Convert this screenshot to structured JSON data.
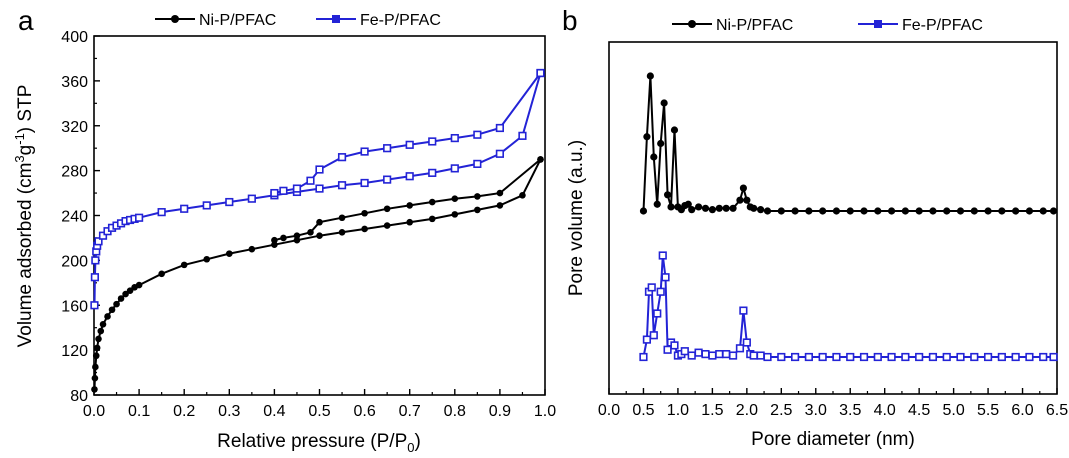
{
  "chart_data": [
    {
      "panel": "a",
      "type": "line",
      "xlabel": "Relative pressure (P/P",
      "xlabel_sub": "0",
      "xlabel_end": ")",
      "ylabel": "Volume adsorbed (cm",
      "ylabel_sup1": "3",
      "ylabel_mid": "g",
      "ylabel_sup2": "-1",
      "ylabel_end": ") STP",
      "xlim": [
        0.0,
        1.0
      ],
      "ylim": [
        80,
        400
      ],
      "xticks": [
        "0.0",
        "0.1",
        "0.2",
        "0.3",
        "0.4",
        "0.5",
        "0.6",
        "0.7",
        "0.8",
        "0.9",
        "1.0"
      ],
      "yticks": [
        "80",
        "120",
        "160",
        "200",
        "240",
        "280",
        "320",
        "360",
        "400"
      ],
      "legend_position": "top",
      "series": [
        {
          "name": "Ni-P/PFAC",
          "color": "#000000",
          "marker": "circle",
          "adsorption": [
            [
              0.001,
              85
            ],
            [
              0.002,
              95
            ],
            [
              0.003,
              105
            ],
            [
              0.005,
              115
            ],
            [
              0.007,
              122
            ],
            [
              0.01,
              130
            ],
            [
              0.015,
              137
            ],
            [
              0.02,
              143
            ],
            [
              0.03,
              150
            ],
            [
              0.04,
              156
            ],
            [
              0.05,
              161
            ],
            [
              0.06,
              166
            ],
            [
              0.07,
              170
            ],
            [
              0.08,
              173
            ],
            [
              0.09,
              176
            ],
            [
              0.1,
              178
            ],
            [
              0.15,
              188
            ],
            [
              0.2,
              196
            ],
            [
              0.25,
              201
            ],
            [
              0.3,
              206
            ],
            [
              0.35,
              210
            ],
            [
              0.4,
              214
            ],
            [
              0.45,
              218
            ],
            [
              0.5,
              222
            ],
            [
              0.55,
              225
            ],
            [
              0.6,
              228
            ],
            [
              0.65,
              231
            ],
            [
              0.7,
              234
            ],
            [
              0.75,
              237
            ],
            [
              0.8,
              241
            ],
            [
              0.85,
              245
            ],
            [
              0.9,
              249
            ],
            [
              0.95,
              258
            ],
            [
              0.99,
              290
            ]
          ],
          "desorption": [
            [
              0.99,
              290
            ],
            [
              0.9,
              260
            ],
            [
              0.85,
              257
            ],
            [
              0.8,
              255
            ],
            [
              0.75,
              252
            ],
            [
              0.7,
              249
            ],
            [
              0.65,
              246
            ],
            [
              0.6,
              242
            ],
            [
              0.55,
              238
            ],
            [
              0.5,
              234
            ],
            [
              0.48,
              225
            ],
            [
              0.45,
              222
            ],
            [
              0.42,
              220
            ],
            [
              0.4,
              218
            ]
          ]
        },
        {
          "name": "Fe-P/PFAC",
          "color": "#2323d6",
          "marker": "square",
          "adsorption": [
            [
              0.001,
              160
            ],
            [
              0.002,
              185
            ],
            [
              0.003,
              200
            ],
            [
              0.005,
              208
            ],
            [
              0.007,
              213
            ],
            [
              0.01,
              217
            ],
            [
              0.02,
              222
            ],
            [
              0.03,
              226
            ],
            [
              0.04,
              229
            ],
            [
              0.05,
              231
            ],
            [
              0.06,
              233
            ],
            [
              0.07,
              235
            ],
            [
              0.08,
              236
            ],
            [
              0.09,
              237
            ],
            [
              0.1,
              238
            ],
            [
              0.15,
              243
            ],
            [
              0.2,
              246
            ],
            [
              0.25,
              249
            ],
            [
              0.3,
              252
            ],
            [
              0.35,
              255
            ],
            [
              0.4,
              258
            ],
            [
              0.45,
              261
            ],
            [
              0.5,
              264
            ],
            [
              0.55,
              267
            ],
            [
              0.6,
              269
            ],
            [
              0.65,
              272
            ],
            [
              0.7,
              275
            ],
            [
              0.75,
              278
            ],
            [
              0.8,
              282
            ],
            [
              0.85,
              286
            ],
            [
              0.9,
              295
            ],
            [
              0.95,
              311
            ],
            [
              0.99,
              367
            ]
          ],
          "desorption": [
            [
              0.99,
              367
            ],
            [
              0.9,
              318
            ],
            [
              0.85,
              312
            ],
            [
              0.8,
              309
            ],
            [
              0.75,
              306
            ],
            [
              0.7,
              303
            ],
            [
              0.65,
              300
            ],
            [
              0.6,
              297
            ],
            [
              0.55,
              292
            ],
            [
              0.5,
              281
            ],
            [
              0.48,
              271
            ],
            [
              0.45,
              264
            ],
            [
              0.42,
              262
            ],
            [
              0.4,
              260
            ]
          ]
        }
      ]
    },
    {
      "panel": "b",
      "type": "line",
      "xlabel": "Pore diameter (nm)",
      "ylabel": "Pore volume (a.u.)",
      "xlim": [
        0.0,
        6.5
      ],
      "xticks": [
        "0.0",
        "0.5",
        "1.0",
        "1.5",
        "2.0",
        "2.5",
        "3.0",
        "3.5",
        "4.0",
        "4.5",
        "5.0",
        "5.5",
        "6.0",
        "6.5"
      ],
      "legend_position": "top",
      "series": [
        {
          "name": "Ni-P/PFAC",
          "color": "#000000",
          "marker": "circle",
          "offset": 1.0,
          "points": [
            [
              0.5,
              0
            ],
            [
              0.55,
              0.55
            ],
            [
              0.6,
              1.0
            ],
            [
              0.65,
              0.4
            ],
            [
              0.7,
              0.05
            ],
            [
              0.75,
              0.5
            ],
            [
              0.8,
              0.8
            ],
            [
              0.85,
              0.12
            ],
            [
              0.9,
              0.03
            ],
            [
              0.95,
              0.6
            ],
            [
              1.0,
              0.03
            ],
            [
              1.05,
              0.01
            ],
            [
              1.1,
              0.04
            ],
            [
              1.15,
              0.05
            ],
            [
              1.2,
              0.01
            ],
            [
              1.3,
              0.03
            ],
            [
              1.4,
              0.02
            ],
            [
              1.5,
              0.01
            ],
            [
              1.6,
              0.02
            ],
            [
              1.7,
              0.02
            ],
            [
              1.8,
              0.02
            ],
            [
              1.9,
              0.08
            ],
            [
              1.95,
              0.17
            ],
            [
              2.0,
              0.08
            ],
            [
              2.05,
              0.03
            ],
            [
              2.1,
              0.02
            ],
            [
              2.2,
              0.01
            ],
            [
              2.3,
              0.0
            ],
            [
              2.5,
              0.0
            ],
            [
              2.7,
              0.0
            ],
            [
              2.9,
              0.0
            ],
            [
              3.1,
              0.0
            ],
            [
              3.3,
              0.0
            ],
            [
              3.5,
              0.0
            ],
            [
              3.7,
              0.0
            ],
            [
              3.9,
              0.0
            ],
            [
              4.1,
              0.0
            ],
            [
              4.3,
              0.0
            ],
            [
              4.5,
              0.0
            ],
            [
              4.7,
              0.0
            ],
            [
              4.9,
              0.0
            ],
            [
              5.1,
              0.0
            ],
            [
              5.3,
              0.0
            ],
            [
              5.5,
              0.0
            ],
            [
              5.7,
              0.0
            ],
            [
              5.9,
              0.0
            ],
            [
              6.1,
              0.0
            ],
            [
              6.3,
              0.0
            ],
            [
              6.45,
              0.0
            ]
          ]
        },
        {
          "name": "Fe-P/PFAC",
          "color": "#2323d6",
          "marker": "square",
          "offset": 0.0,
          "points": [
            [
              0.5,
              0
            ],
            [
              0.55,
              0.12
            ],
            [
              0.58,
              0.45
            ],
            [
              0.62,
              0.48
            ],
            [
              0.65,
              0.15
            ],
            [
              0.7,
              0.3
            ],
            [
              0.75,
              0.45
            ],
            [
              0.78,
              0.7
            ],
            [
              0.82,
              0.55
            ],
            [
              0.85,
              0.05
            ],
            [
              0.9,
              0.1
            ],
            [
              0.95,
              0.08
            ],
            [
              1.0,
              0.01
            ],
            [
              1.05,
              0.02
            ],
            [
              1.1,
              0.04
            ],
            [
              1.2,
              0.01
            ],
            [
              1.3,
              0.03
            ],
            [
              1.4,
              0.02
            ],
            [
              1.5,
              0.01
            ],
            [
              1.6,
              0.02
            ],
            [
              1.7,
              0.02
            ],
            [
              1.8,
              0.01
            ],
            [
              1.9,
              0.06
            ],
            [
              1.95,
              0.32
            ],
            [
              2.0,
              0.1
            ],
            [
              2.05,
              0.02
            ],
            [
              2.1,
              0.01
            ],
            [
              2.2,
              0.01
            ],
            [
              2.3,
              0.0
            ],
            [
              2.5,
              0.0
            ],
            [
              2.7,
              0.0
            ],
            [
              2.9,
              0.0
            ],
            [
              3.1,
              0.0
            ],
            [
              3.3,
              0.0
            ],
            [
              3.5,
              0.0
            ],
            [
              3.7,
              0.0
            ],
            [
              3.9,
              0.0
            ],
            [
              4.1,
              0.0
            ],
            [
              4.3,
              0.0
            ],
            [
              4.5,
              0.0
            ],
            [
              4.7,
              0.0
            ],
            [
              4.9,
              0.0
            ],
            [
              5.1,
              0.0
            ],
            [
              5.3,
              0.0
            ],
            [
              5.5,
              0.0
            ],
            [
              5.7,
              0.0
            ],
            [
              5.9,
              0.0
            ],
            [
              6.1,
              0.0
            ],
            [
              6.3,
              0.0
            ],
            [
              6.45,
              0.0
            ]
          ]
        }
      ]
    }
  ],
  "labels": {
    "panel_a_letter": "a",
    "panel_b_letter": "b",
    "legend_a_1": "Ni-P/PFAC",
    "legend_a_2": "Fe-P/PFAC",
    "legend_b_1": "Ni-P/PFAC",
    "legend_b_2": "Fe-P/PFAC"
  }
}
